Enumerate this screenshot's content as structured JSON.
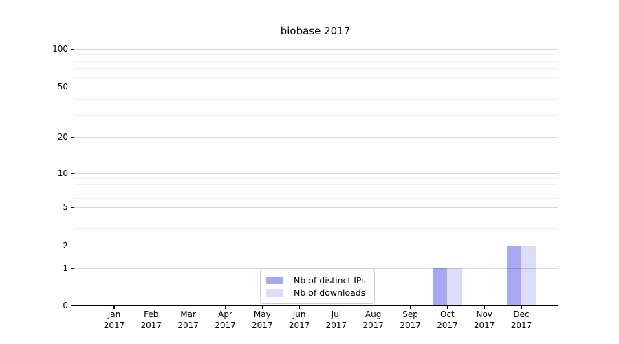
{
  "chart_data": {
    "type": "bar",
    "title": "biobase 2017",
    "categories": [
      "Jan",
      "Feb",
      "Mar",
      "Apr",
      "May",
      "Jun",
      "Jul",
      "Aug",
      "Sep",
      "Oct",
      "Nov",
      "Dec"
    ],
    "category_year": "2017",
    "series": [
      {
        "name": "Nb of distinct IPs",
        "color_hex": "#0000d9",
        "alpha": 0.34,
        "values": [
          0,
          0,
          0,
          0,
          0,
          0,
          0,
          0,
          0,
          1,
          0,
          2
        ]
      },
      {
        "name": "Nb of downloads",
        "color_hex": "#0000d9",
        "alpha": 0.14,
        "values": [
          0,
          0,
          0,
          0,
          0,
          0,
          0,
          0,
          0,
          1,
          0,
          2
        ]
      }
    ],
    "yticks": [
      0,
      1,
      2,
      5,
      10,
      20,
      50,
      100
    ],
    "yscale": "symlog",
    "ylim": [
      0,
      115
    ],
    "xlabel": "",
    "ylabel": "",
    "grid": true,
    "legend_position": "lower center"
  }
}
